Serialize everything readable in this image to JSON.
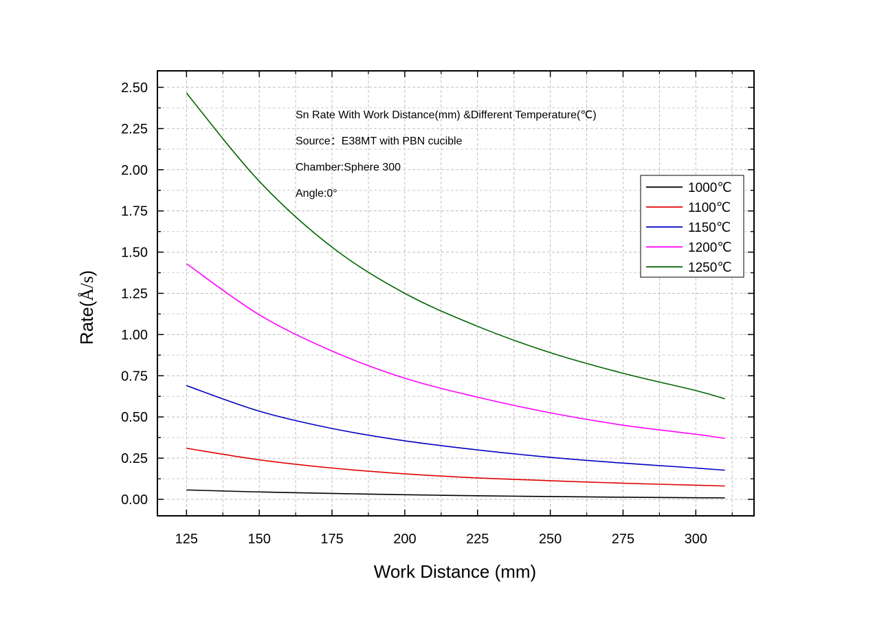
{
  "chart_data": {
    "type": "line",
    "xlabel": "Work Distance (mm)",
    "ylabel_prefix": "Rate(",
    "ylabel_unit": "Å/s",
    "ylabel_suffix": ")",
    "xlim": [
      115,
      320
    ],
    "ylim": [
      -0.1,
      2.6
    ],
    "xticks": [
      125,
      150,
      175,
      200,
      225,
      250,
      275,
      300
    ],
    "xtick_labels": [
      "125",
      "150",
      "175",
      "200",
      "225",
      "250",
      "275",
      "300"
    ],
    "yticks": [
      0,
      0.25,
      0.5,
      0.75,
      1.0,
      1.25,
      1.5,
      1.75,
      2.0,
      2.25,
      2.5
    ],
    "ytick_labels": [
      "0.00",
      "0.25",
      "0.50",
      "0.75",
      "1.00",
      "1.25",
      "1.50",
      "1.75",
      "2.00",
      "2.25",
      "2.50"
    ],
    "grid": true,
    "legend_position": "right",
    "annotations": [
      "Sn Rate With Work Distance(mm) &Different Temperature(℃)",
      "Source：E38MT with PBN cucible",
      "Chamber:Sphere 300",
      "Angle:0°"
    ],
    "x": [
      125,
      150,
      175,
      200,
      225,
      250,
      275,
      300,
      310
    ],
    "series": [
      {
        "name": "1000℃",
        "color": "#000000",
        "values": [
          0.057,
          0.045,
          0.036,
          0.028,
          0.022,
          0.017,
          0.013,
          0.01,
          0.009
        ]
      },
      {
        "name": "1100℃",
        "color": "#e00000",
        "values": [
          0.31,
          0.24,
          0.19,
          0.155,
          0.13,
          0.113,
          0.098,
          0.086,
          0.081
        ]
      },
      {
        "name": "1150℃",
        "color": "#0000c0",
        "values": [
          0.69,
          0.535,
          0.43,
          0.355,
          0.3,
          0.255,
          0.22,
          0.19,
          0.177
        ]
      },
      {
        "name": "1200℃",
        "color": "#ff00ff",
        "values": [
          1.43,
          1.12,
          0.9,
          0.735,
          0.62,
          0.525,
          0.45,
          0.395,
          0.37
        ]
      },
      {
        "name": "1250℃",
        "color": "#006400",
        "values": [
          2.465,
          1.93,
          1.53,
          1.25,
          1.05,
          0.89,
          0.765,
          0.66,
          0.61
        ]
      }
    ]
  }
}
